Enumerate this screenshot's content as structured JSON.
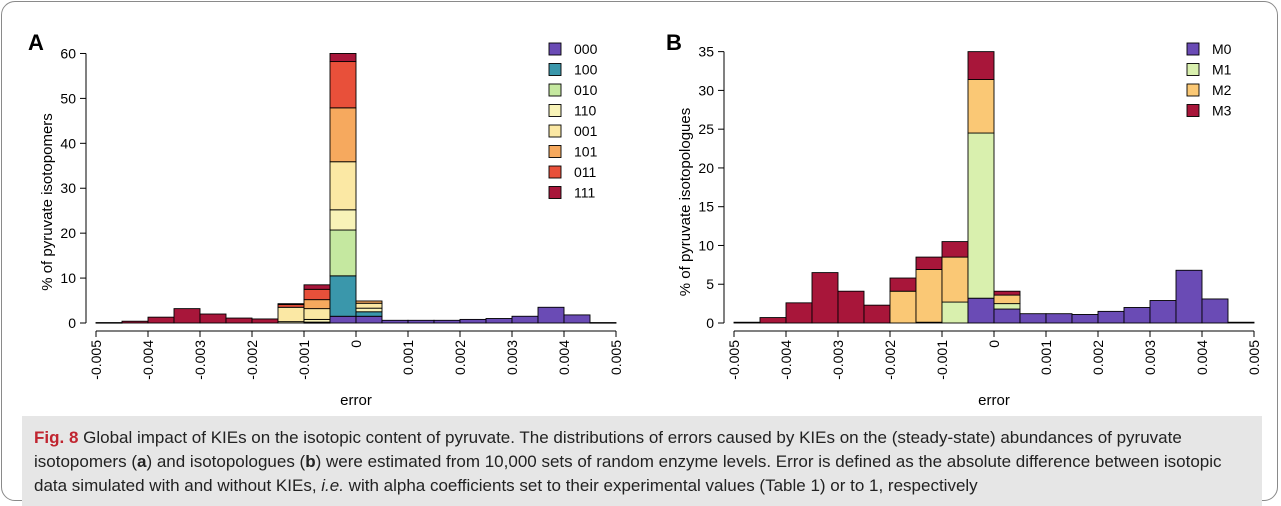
{
  "caption": {
    "fig_label": "Fig. 8",
    "p1": " Global impact of KIEs on the isotopic content of pyruvate. The distributions of errors caused by KIEs on the (steady-state) abundances of pyruvate isotopomers (",
    "a": "a",
    "p2": ") and isotopologues (",
    "b": "b",
    "p3": ") were estimated from 10,000 sets of random enzyme levels. Error is defined as the absolute difference between isotopic data simulated with and without KIEs, ",
    "ie": "i.e.",
    "p4": " with alpha coefficients set to their experimental values (Table 1) or to 1, respectively"
  },
  "chart_data": [
    {
      "type": "bar",
      "stacked": true,
      "panel_label": "A",
      "xlabel": "error",
      "ylabel": "% of pyruvate isotopomers",
      "xlim": [
        -0.005,
        0.005
      ],
      "ylim": [
        0,
        63
      ],
      "yticks": [
        0,
        10,
        20,
        30,
        40,
        50,
        60
      ],
      "xticks": [
        "-0.005",
        "-0.004",
        "-0.003",
        "-0.002",
        "-0.001",
        "0",
        "0.001",
        "0.002",
        "0.003",
        "0.004",
        "0.005"
      ],
      "grid": false,
      "legend": "top-right",
      "bin_starts": [
        -0.005,
        -0.0045,
        -0.004,
        -0.0035,
        -0.003,
        -0.0025,
        -0.002,
        -0.0015,
        -0.001,
        -0.0005,
        0,
        0.0005,
        0.001,
        0.0015,
        0.002,
        0.0025,
        0.003,
        0.0035,
        0.004,
        0.0045
      ],
      "bin_width": 0.0005,
      "series": [
        {
          "name": "000",
          "color": "#6a4bb5",
          "values": [
            0,
            0,
            0,
            0,
            0,
            0,
            0,
            0,
            0.1,
            1.5,
            1.5,
            0.6,
            0.6,
            0.6,
            0.8,
            1.0,
            1.5,
            3.5,
            1.8,
            0.1
          ]
        },
        {
          "name": "100",
          "color": "#3a97ab",
          "values": [
            0,
            0,
            0,
            0,
            0,
            0,
            0,
            0,
            0.1,
            9.0,
            1.0,
            0,
            0,
            0,
            0,
            0,
            0,
            0,
            0,
            0
          ]
        },
        {
          "name": "010",
          "color": "#c5e8a0",
          "values": [
            0,
            0,
            0,
            0,
            0,
            0,
            0,
            0,
            0,
            10.2,
            0,
            0,
            0,
            0,
            0,
            0,
            0,
            0,
            0,
            0
          ]
        },
        {
          "name": "110",
          "color": "#f8f3b8",
          "values": [
            0,
            0,
            0,
            0,
            0,
            0,
            0,
            0.3,
            0.6,
            4.5,
            0.8,
            0,
            0,
            0,
            0,
            0,
            0,
            0,
            0,
            0
          ]
        },
        {
          "name": "001",
          "color": "#fbe8a4",
          "values": [
            0,
            0,
            0,
            0,
            0,
            0,
            0,
            3.2,
            2.4,
            10.7,
            1.1,
            0,
            0,
            0,
            0,
            0,
            0,
            0,
            0,
            0
          ]
        },
        {
          "name": "101",
          "color": "#f6a95e",
          "values": [
            0,
            0,
            0,
            0,
            0,
            0,
            0,
            0,
            2.0,
            12.0,
            0.5,
            0,
            0,
            0,
            0,
            0,
            0,
            0,
            0,
            0
          ]
        },
        {
          "name": "011",
          "color": "#e8503a",
          "values": [
            0,
            0,
            0,
            0,
            0,
            0,
            0,
            0.6,
            2.3,
            10.3,
            0,
            0,
            0,
            0,
            0,
            0,
            0,
            0,
            0,
            0
          ]
        },
        {
          "name": "111",
          "color": "#a8163a",
          "values": [
            0.1,
            0.4,
            1.3,
            3.2,
            2.0,
            1.1,
            0.9,
            0.2,
            1.0,
            1.8,
            0,
            0,
            0,
            0,
            0,
            0,
            0,
            0,
            0,
            0
          ]
        }
      ]
    },
    {
      "type": "bar",
      "stacked": true,
      "panel_label": "B",
      "xlabel": "error",
      "ylabel": "% of pyruvate isotopologues",
      "xlim": [
        -0.005,
        0.005
      ],
      "ylim": [
        0,
        36.5
      ],
      "yticks": [
        0,
        5,
        10,
        15,
        20,
        25,
        30,
        35
      ],
      "xticks": [
        "-0.005",
        "-0.004",
        "-0.003",
        "-0.002",
        "-0.001",
        "0",
        "0.001",
        "0.002",
        "0.003",
        "0.004",
        "0.005"
      ],
      "grid": false,
      "legend": "top-right",
      "bin_starts": [
        -0.005,
        -0.0045,
        -0.004,
        -0.0035,
        -0.003,
        -0.0025,
        -0.002,
        -0.0015,
        -0.001,
        -0.0005,
        0,
        0.0005,
        0.001,
        0.0015,
        0.002,
        0.0025,
        0.003,
        0.0035,
        0.004,
        0.0045
      ],
      "bin_width": 0.0005,
      "series": [
        {
          "name": "M0",
          "color": "#6a4bb5",
          "values": [
            0,
            0,
            0,
            0,
            0,
            0,
            0,
            0,
            0,
            3.2,
            1.8,
            1.2,
            1.2,
            1.1,
            1.5,
            2.0,
            2.9,
            6.8,
            3.1,
            0.1
          ]
        },
        {
          "name": "M1",
          "color": "#d9f0ae",
          "values": [
            0,
            0,
            0,
            0,
            0,
            0,
            0,
            0.1,
            2.7,
            21.3,
            0.7,
            0,
            0,
            0,
            0,
            0,
            0,
            0,
            0,
            0
          ]
        },
        {
          "name": "M2",
          "color": "#fac875",
          "values": [
            0,
            0,
            0,
            0,
            0,
            0,
            4.1,
            6.8,
            5.8,
            6.9,
            1.1,
            0,
            0,
            0,
            0,
            0,
            0,
            0,
            0,
            0
          ]
        },
        {
          "name": "M3",
          "color": "#a8163a",
          "values": [
            0.1,
            0.7,
            2.6,
            6.5,
            4.1,
            2.3,
            1.7,
            1.6,
            2.0,
            3.6,
            0.5,
            0,
            0,
            0,
            0,
            0,
            0,
            0,
            0,
            0
          ]
        }
      ]
    }
  ]
}
